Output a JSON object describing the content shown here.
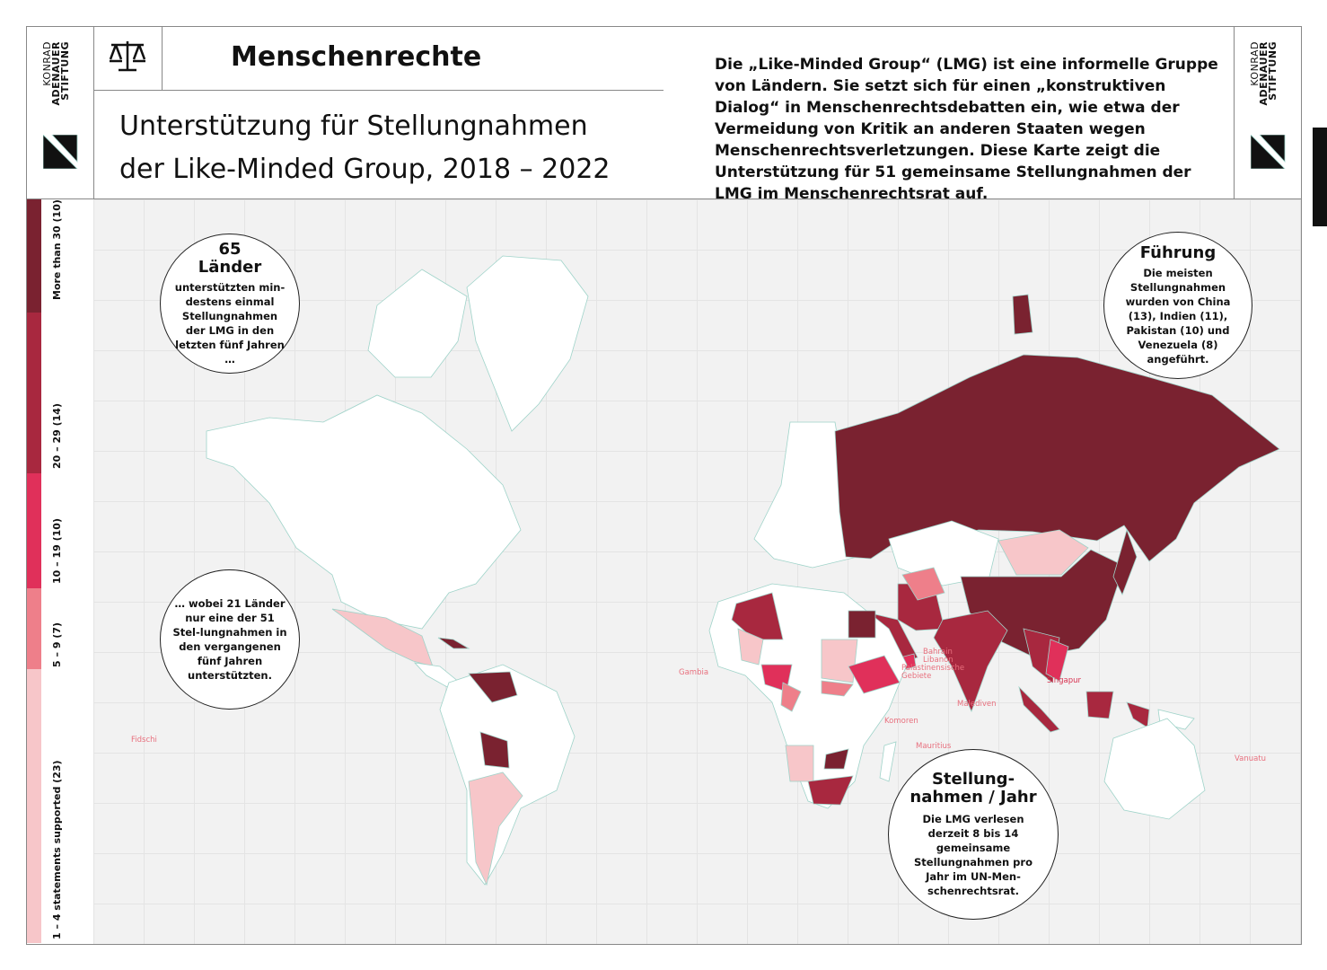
{
  "logo": {
    "line1": "KONRAD",
    "line2": "ADENAUER",
    "line3": "STIFTUNG"
  },
  "header": {
    "icon": "scale-icon",
    "topic": "Menschenrechte",
    "title_line1": "Unterstützung für Stellungnahmen",
    "title_line2": "der Like-Minded Group, 2018 – 2022",
    "intro": "Die „Like-Minded Group“ (LMG) ist eine informelle Gruppe von Ländern. Sie setzt sich für einen „konstruktiven Dialog“ in Menschenrechtsdebatten ein, wie etwa der Vermeidung von Kritik an anderen Staaten wegen Menschenrechtsverletzungen. Diese Karte zeigt die Unterstützung für 51 gemeinsame Stellungnahmen der LMG im Menschenrechtsrat auf."
  },
  "legend": [
    {
      "label": "More than 30 (10)",
      "color": "#7a2230"
    },
    {
      "label": "20 – 29 (14)",
      "color": "#a8283f"
    },
    {
      "label": "10 – 19 (10)",
      "color": "#e0305a"
    },
    {
      "label": "5 – 9 (7)",
      "color": "#ee7f8a"
    },
    {
      "label": "1 – 4 statements supported (23)",
      "color": "#f7c6c9"
    }
  ],
  "callouts": {
    "countries": {
      "head1": "65",
      "head2": "Länder",
      "body": "unterstützten min-destens einmal Stellungnahmen der LMG in den letzten fünf Jahren …"
    },
    "single": {
      "body": "… wobei 21 Länder nur eine der 51 Stel-lungnahmen in den vergangenen fünf Jahren unterstützten."
    },
    "lead": {
      "head": "Führung",
      "body": "Die meisten Stellungnahmen wurden von China (13), Indien (11), Pakistan (10) und Venezuela (8) angeführt."
    },
    "yearly": {
      "head": "Stellung-nahmen / Jahr",
      "body": "Die LMG verlesen derzeit 8 bis 14 gemeinsame Stellungnahmen pro Jahr im UN-Men-schenrechtsrat."
    }
  },
  "small_labels": {
    "gambia": "Gambia",
    "bahrain": "Bahrain",
    "libanon": "Libanon",
    "palestine1": "Palästinensische",
    "palestine2": "Gebiete",
    "singapur": "Singapur",
    "malediven": "Malediven",
    "komoren": "Komoren",
    "mauritius": "Mauritius",
    "fidschi": "Fidschi",
    "vanuatu": "Vanuatu"
  }
}
